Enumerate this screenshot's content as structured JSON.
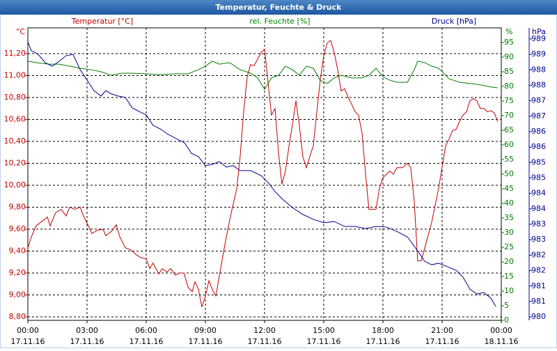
{
  "chart_data": {
    "type": "line",
    "title": "Temperatur, Feuchte & Druck",
    "y_unit": "°C",
    "y2_unit": "%",
    "y3_unit": "hPa",
    "xlim": [
      0,
      24
    ],
    "xticks": [
      {
        "value": 0,
        "label": "00:00",
        "date": "17.11.16"
      },
      {
        "value": 3,
        "label": "03:00",
        "date": "17.11.16"
      },
      {
        "value": 6,
        "label": "06:00",
        "date": "17.11.16"
      },
      {
        "value": 9,
        "label": "09:00",
        "date": "17.11.16"
      },
      {
        "value": 12,
        "label": "12:00",
        "date": "17.11.16"
      },
      {
        "value": 15,
        "label": "15:00",
        "date": "17.11.16"
      },
      {
        "value": 18,
        "label": "18:00",
        "date": "17.11.16"
      },
      {
        "value": 21,
        "label": "21:00",
        "date": "17.11.16"
      },
      {
        "value": 24,
        "label": "00:00",
        "date": "18.11.16"
      }
    ],
    "ylim": [
      8.768,
      11.435
    ],
    "yticks": [
      {
        "value": 8.8,
        "label": "8,80"
      },
      {
        "value": 9.0,
        "label": "9,00"
      },
      {
        "value": 9.2,
        "label": "9,20"
      },
      {
        "value": 9.4,
        "label": "9,40"
      },
      {
        "value": 9.6,
        "label": "9,60"
      },
      {
        "value": 9.8,
        "label": "9,80"
      },
      {
        "value": 10.0,
        "label": "10,00"
      },
      {
        "value": 10.2,
        "label": "10,20"
      },
      {
        "value": 10.4,
        "label": "10,40"
      },
      {
        "value": 10.6,
        "label": "10,60"
      },
      {
        "value": 10.8,
        "label": "10,80"
      },
      {
        "value": 11.0,
        "label": "11,00"
      },
      {
        "value": 11.2,
        "label": "11,20"
      }
    ],
    "y2lim": [
      0,
      100
    ],
    "y2ticks": [
      0,
      5,
      10,
      15,
      20,
      25,
      30,
      35,
      40,
      45,
      50,
      55,
      60,
      65,
      70,
      75,
      80,
      85,
      90,
      95
    ],
    "y3lim": [
      979.89,
      989.36
    ],
    "y3ticks": [
      {
        "value": 980,
        "label": "980"
      },
      {
        "value": 980.5,
        "label": "981"
      },
      {
        "value": 981,
        "label": "981"
      },
      {
        "value": 981.5,
        "label": "982"
      },
      {
        "value": 982,
        "label": "982"
      },
      {
        "value": 982.5,
        "label": "983"
      },
      {
        "value": 983,
        "label": "983"
      },
      {
        "value": 983.5,
        "label": "984"
      },
      {
        "value": 984,
        "label": "984"
      },
      {
        "value": 984.5,
        "label": "985"
      },
      {
        "value": 985,
        "label": "985"
      },
      {
        "value": 985.5,
        "label": "986"
      },
      {
        "value": 986,
        "label": "986"
      },
      {
        "value": 986.5,
        "label": "987"
      },
      {
        "value": 987,
        "label": "987"
      },
      {
        "value": 987.5,
        "label": "988"
      },
      {
        "value": 988,
        "label": "988"
      },
      {
        "value": 988.5,
        "label": "989"
      },
      {
        "value": 989,
        "label": "989"
      }
    ],
    "grid": true,
    "series": [
      {
        "name": "Temperatur [°C]",
        "color": "#c00000",
        "axis": "y",
        "x": [
          0,
          0.18,
          0.42,
          0.71,
          0.99,
          1.13,
          1.41,
          1.69,
          1.94,
          2.12,
          2.4,
          2.65,
          2.82,
          3.07,
          3.25,
          3.53,
          3.81,
          3.95,
          4.24,
          4.48,
          4.66,
          4.94,
          5.22,
          5.47,
          5.72,
          6.0,
          6.18,
          6.35,
          6.64,
          6.81,
          7.06,
          7.24,
          7.48,
          7.69,
          7.91,
          8.12,
          8.33,
          8.47,
          8.65,
          8.82,
          9.0,
          9.18,
          9.35,
          9.53,
          9.81,
          10.06,
          10.31,
          10.59,
          10.76,
          10.94,
          11.12,
          11.29,
          11.47,
          11.65,
          11.82,
          12.0,
          12.18,
          12.35,
          12.53,
          12.71,
          12.88,
          13.06,
          13.24,
          13.41,
          13.59,
          13.76,
          13.94,
          14.12,
          14.29,
          14.47,
          14.65,
          14.82,
          15.0,
          15.18,
          15.35,
          15.53,
          15.71,
          15.88,
          16.06,
          16.24,
          16.41,
          16.59,
          16.76,
          16.94,
          17.12,
          17.29,
          17.47,
          17.65,
          17.82,
          18.0,
          18.18,
          18.35,
          18.53,
          18.71,
          18.99,
          19.24,
          19.41,
          19.59,
          19.76,
          19.94,
          20.12,
          20.47,
          20.82,
          21.18,
          21.35,
          21.53,
          21.71,
          21.88,
          22.06,
          22.24,
          22.41,
          22.59,
          22.76,
          22.94,
          23.12,
          23.29,
          23.47,
          23.65,
          23.82
        ],
        "values": [
          9.43,
          9.53,
          9.63,
          9.67,
          9.71,
          9.63,
          9.75,
          9.78,
          9.72,
          9.8,
          9.78,
          9.8,
          9.72,
          9.63,
          9.56,
          9.59,
          9.6,
          9.54,
          9.58,
          9.64,
          9.53,
          9.43,
          9.41,
          9.37,
          9.34,
          9.33,
          9.24,
          9.29,
          9.19,
          9.24,
          9.21,
          9.24,
          9.18,
          9.2,
          9.2,
          9.07,
          9.03,
          9.12,
          9.05,
          8.89,
          8.99,
          9.13,
          9.05,
          8.99,
          9.28,
          9.53,
          9.75,
          9.97,
          10.26,
          10.67,
          10.99,
          11.1,
          11.09,
          11.15,
          11.21,
          11.24,
          10.93,
          10.64,
          10.7,
          10.29,
          10.01,
          10.13,
          10.36,
          10.55,
          10.77,
          10.55,
          10.26,
          10.16,
          10.26,
          10.36,
          10.67,
          10.96,
          11.18,
          11.3,
          11.32,
          11.21,
          11.05,
          10.86,
          10.88,
          10.8,
          10.74,
          10.67,
          10.64,
          10.48,
          10.1,
          9.78,
          9.78,
          9.78,
          9.97,
          10.07,
          10.1,
          10.13,
          10.1,
          10.16,
          10.16,
          10.2,
          10.16,
          9.85,
          9.31,
          9.31,
          9.43,
          9.66,
          9.97,
          10.36,
          10.42,
          10.5,
          10.51,
          10.58,
          10.64,
          10.67,
          10.77,
          10.79,
          10.77,
          10.7,
          10.7,
          10.67,
          10.68,
          10.66,
          10.58
        ]
      },
      {
        "name": "rel. Feuchte [%]",
        "color": "#008000",
        "axis": "y2",
        "x": [
          0,
          0.53,
          1.06,
          1.59,
          2.12,
          2.65,
          3.18,
          3.71,
          4.24,
          4.76,
          5.29,
          6.0,
          6.71,
          7.41,
          8.12,
          8.65,
          9.0,
          9.35,
          9.71,
          10.24,
          10.76,
          11.29,
          11.65,
          12.0,
          12.35,
          12.71,
          13.06,
          13.41,
          13.76,
          14.12,
          14.47,
          14.82,
          15.18,
          15.53,
          15.88,
          16.41,
          16.94,
          17.29,
          17.65,
          18.0,
          18.35,
          18.71,
          19.24,
          19.59,
          19.76,
          20.12,
          20.47,
          20.82,
          21.35,
          21.88,
          22.41,
          22.94,
          23.47,
          23.82
        ],
        "values": [
          88.6,
          88,
          87.6,
          87.6,
          86.9,
          86.2,
          85.7,
          85,
          83.8,
          84.5,
          84.5,
          84.3,
          84,
          84.3,
          84.3,
          85.7,
          86.9,
          88.6,
          87.6,
          88.1,
          85.7,
          84.5,
          82.9,
          79,
          82.9,
          83.8,
          86.9,
          85.7,
          83.8,
          86.9,
          86.2,
          82.1,
          81,
          82.9,
          83.8,
          82.9,
          82.9,
          83.8,
          86.2,
          83.3,
          82.1,
          81.4,
          81.4,
          85.7,
          88.6,
          88.1,
          86.9,
          86.2,
          82.6,
          81.4,
          81,
          80.5,
          79.8,
          79.5
        ]
      },
      {
        "name": "Druck [hPa]",
        "color": "#000090",
        "axis": "y3",
        "x": [
          0,
          0.18,
          0.53,
          0.88,
          1.24,
          1.59,
          1.94,
          2.29,
          2.65,
          3.0,
          3.35,
          3.71,
          3.95,
          4.24,
          4.59,
          4.94,
          5.29,
          5.65,
          6.0,
          6.35,
          6.71,
          7.06,
          7.59,
          7.94,
          8.29,
          8.65,
          9.0,
          9.35,
          9.71,
          10.06,
          10.41,
          10.76,
          11.29,
          11.82,
          12.18,
          12.53,
          12.88,
          13.41,
          13.94,
          14.47,
          15.0,
          15.53,
          16.06,
          16.59,
          17.12,
          17.65,
          18.18,
          18.71,
          19.24,
          19.76,
          20.12,
          20.47,
          20.82,
          21.18,
          21.71,
          22.06,
          22.41,
          22.76,
          23.12,
          23.47,
          23.72
        ],
        "values": [
          988.91,
          988.62,
          988.5,
          988.23,
          988.12,
          988.28,
          988.46,
          988.5,
          988.01,
          987.67,
          987.33,
          987.15,
          987.33,
          987.22,
          987.15,
          987.11,
          986.77,
          986.65,
          986.54,
          986.2,
          986.09,
          985.93,
          985.75,
          985.64,
          985.3,
          985.19,
          984.9,
          984.94,
          985.03,
          984.85,
          984.9,
          984.74,
          984.74,
          984.58,
          984.35,
          984.06,
          983.83,
          983.54,
          983.32,
          983.16,
          983.05,
          983.09,
          982.93,
          982.93,
          982.86,
          982.93,
          982.91,
          982.77,
          982.59,
          982.14,
          981.8,
          981.69,
          981.74,
          981.65,
          981.51,
          981.29,
          980.9,
          980.74,
          980.79,
          980.61,
          980.34
        ]
      }
    ]
  }
}
